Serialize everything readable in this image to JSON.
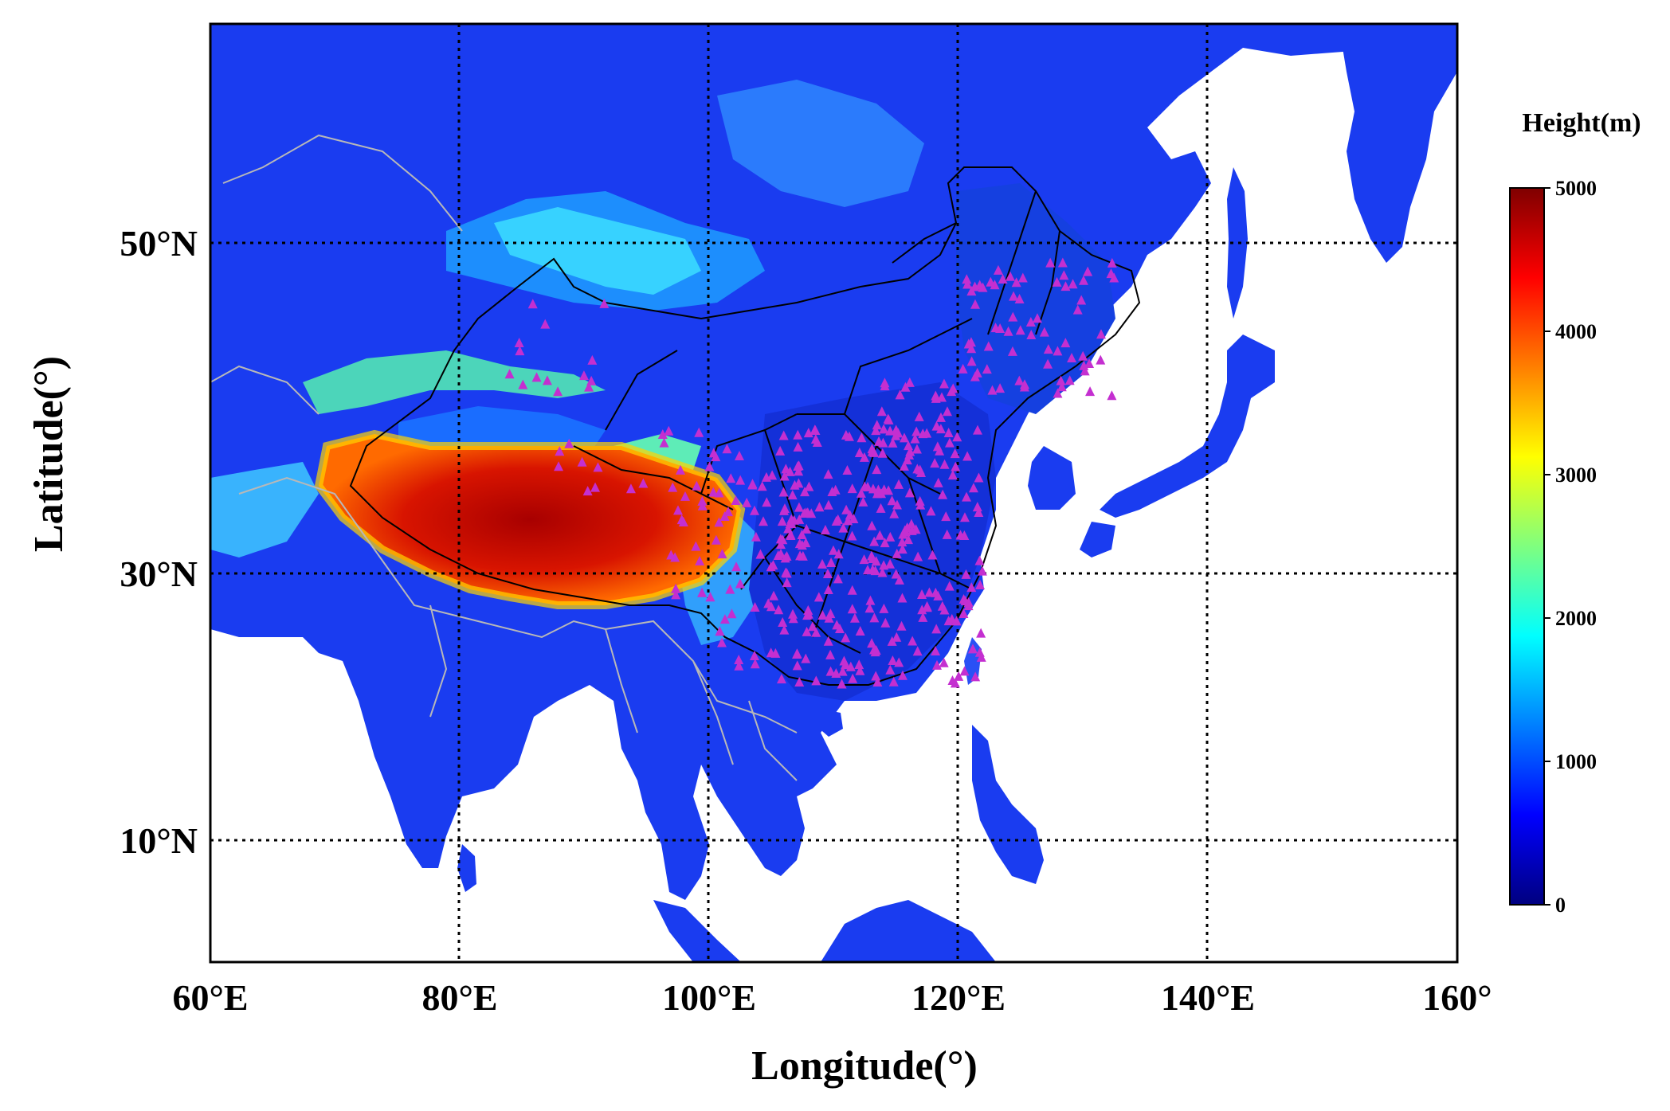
{
  "map": {
    "x_axis_title": "Longitude(°)",
    "y_axis_title": "Latitude(°)",
    "x_ticks": [
      {
        "label": "60°E",
        "lon": 60
      },
      {
        "label": "80°E",
        "lon": 80
      },
      {
        "label": "100°E",
        "lon": 100
      },
      {
        "label": "120°E",
        "lon": 120
      },
      {
        "label": "140°E",
        "lon": 140
      },
      {
        "label": "160°",
        "lon": 160
      }
    ],
    "y_ticks": [
      {
        "label": "50°N",
        "lat": 50
      },
      {
        "label": "30°N",
        "lat": 30
      },
      {
        "label": "10°N",
        "lat": 10
      }
    ],
    "lon_range": [
      60,
      160
    ],
    "lat_range": [
      4,
      60
    ],
    "gridlines": "dotted",
    "station_marker_color": "#c42fd0",
    "colorbar": {
      "title": "Height(m)",
      "min": 0,
      "max": 5000,
      "ticks": [
        {
          "label": "5000",
          "value": 5000
        },
        {
          "label": "4000",
          "value": 4000
        },
        {
          "label": "3000",
          "value": 3000
        },
        {
          "label": "2000",
          "value": 2000
        },
        {
          "label": "1000",
          "value": 1000
        },
        {
          "label": "0",
          "value": 0
        }
      ],
      "colormap": [
        "#00007f",
        "#0000ff",
        "#007fff",
        "#00ffff",
        "#7fff7f",
        "#ffff00",
        "#ff7f00",
        "#ff0000",
        "#7f0000"
      ]
    }
  }
}
